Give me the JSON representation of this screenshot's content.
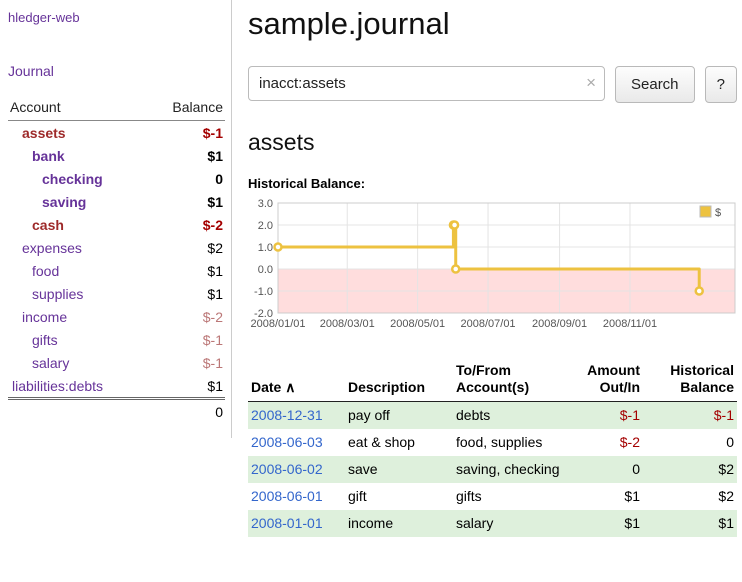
{
  "app": {
    "brand": "hledger-web"
  },
  "colors": {
    "link_purple": "#663399",
    "acct_negative": "#9e2a2a",
    "amount_negative": "#a40000",
    "amount_negative_muted": "#bb7777",
    "date_link": "#3366cc",
    "row_shaded": "#def0dc",
    "chart_line": "#EDC240"
  },
  "sidebar": {
    "journal_link": "Journal",
    "accounts": {
      "header_account": "Account",
      "header_balance": "Balance",
      "rows": [
        {
          "name": "assets",
          "balance": "$-1",
          "depth": 1,
          "name_class": "acct-strong-neg",
          "bal_class": "bal-neg-bold"
        },
        {
          "name": "bank",
          "balance": "$1",
          "depth": 2,
          "name_class": "acct-bold",
          "bal_class": "bal-bold"
        },
        {
          "name": "checking",
          "balance": "0",
          "depth": 3,
          "name_class": "acct-bold",
          "bal_class": "bal-bold"
        },
        {
          "name": "saving",
          "balance": "$1",
          "depth": 3,
          "name_class": "acct-bold",
          "bal_class": "bal-bold"
        },
        {
          "name": "cash",
          "balance": "$-2",
          "depth": 2,
          "name_class": "acct-strong-neg",
          "bal_class": "bal-neg-bold"
        },
        {
          "name": "expenses",
          "balance": "$2",
          "depth": 1,
          "name_class": "",
          "bal_class": ""
        },
        {
          "name": "food",
          "balance": "$1",
          "depth": 2,
          "name_class": "",
          "bal_class": ""
        },
        {
          "name": "supplies",
          "balance": "$1",
          "depth": 2,
          "name_class": "",
          "bal_class": ""
        },
        {
          "name": "income",
          "balance": "$-2",
          "depth": 1,
          "name_class": "",
          "bal_class": "bal-neg-muted"
        },
        {
          "name": "gifts",
          "balance": "$-1",
          "depth": 2,
          "name_class": "",
          "bal_class": "bal-neg-muted"
        },
        {
          "name": "salary",
          "balance": "$-1",
          "depth": 2,
          "name_class": "",
          "bal_class": "bal-neg-muted"
        },
        {
          "name": "liabilities:debts",
          "balance": "$1",
          "depth": 0,
          "name_class": "",
          "bal_class": ""
        }
      ],
      "total": "0"
    }
  },
  "main": {
    "title": "sample.journal",
    "search": {
      "value": "inacct:assets",
      "clear": "×",
      "submit": "Search",
      "help": "?"
    },
    "account_heading": "assets",
    "section_label": "Historical Balance:"
  },
  "chart_data": {
    "type": "line",
    "title": "Historical Balance",
    "step": true,
    "legend": [
      {
        "label": "$",
        "color": "#EDC240"
      }
    ],
    "ylim": [
      -2.0,
      3.0
    ],
    "y_ticks": [
      3.0,
      2.0,
      1.0,
      0.0,
      -1.0,
      -2.0
    ],
    "x_ticks": [
      "2008/01/01",
      "2008/03/01",
      "2008/05/01",
      "2008/07/01",
      "2008/09/01",
      "2008/11/01"
    ],
    "tick_days": [
      0,
      60,
      121,
      182,
      244,
      305
    ],
    "x_range_days": [
      0,
      396
    ],
    "points": [
      {
        "date": "2008-01-01",
        "day": 0,
        "value": 1
      },
      {
        "date": "2008-06-01",
        "day": 152,
        "value": 2
      },
      {
        "date": "2008-06-02",
        "day": 153,
        "value": 2
      },
      {
        "date": "2008-06-03",
        "day": 154,
        "value": 0
      },
      {
        "date": "2008-12-31",
        "day": 365,
        "value": -1
      }
    ],
    "line_color": "#EDC240",
    "negative_region_color": "#ffdddd",
    "grid_color": "#e4e4e4"
  },
  "register": {
    "headers": {
      "date": "Date",
      "sort_icon": "∧",
      "description": "Description",
      "tofrom": "To/From Account(s)",
      "amount": "Amount Out/In",
      "historical": "Historical Balance"
    },
    "rows": [
      {
        "date": "2008-12-31",
        "description": "pay off",
        "accounts": "debts",
        "amount": "$-1",
        "amount_neg": true,
        "balance": "$-1",
        "balance_neg": true,
        "shaded": true
      },
      {
        "date": "2008-06-03",
        "description": "eat & shop",
        "accounts": "food, supplies",
        "amount": "$-2",
        "amount_neg": true,
        "balance": "0",
        "balance_neg": false,
        "shaded": false
      },
      {
        "date": "2008-06-02",
        "description": "save",
        "accounts": "saving, checking",
        "amount": "0",
        "amount_neg": false,
        "balance": "$2",
        "balance_neg": false,
        "shaded": true
      },
      {
        "date": "2008-06-01",
        "description": "gift",
        "accounts": "gifts",
        "amount": "$1",
        "amount_neg": false,
        "balance": "$2",
        "balance_neg": false,
        "shaded": false
      },
      {
        "date": "2008-01-01",
        "description": "income",
        "accounts": "salary",
        "amount": "$1",
        "amount_neg": false,
        "balance": "$1",
        "balance_neg": false,
        "shaded": true
      }
    ]
  }
}
